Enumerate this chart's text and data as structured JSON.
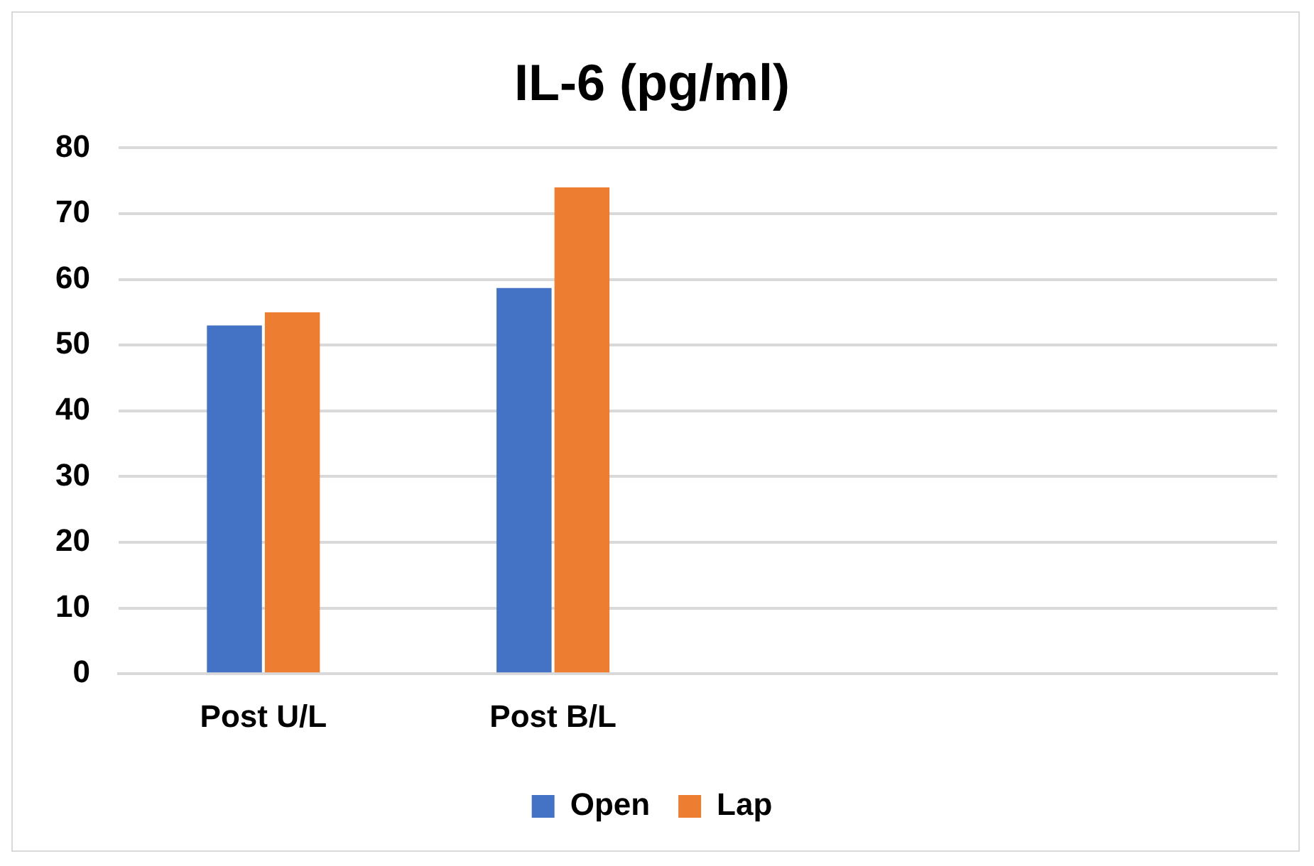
{
  "chart_data": {
    "type": "bar",
    "title": "IL-6 (pg/ml)",
    "categories": [
      "Post U/L",
      "Post B/L",
      null,
      null
    ],
    "series": [
      {
        "name": "Open",
        "color": "#4472c4",
        "values": [
          53,
          58.7,
          null,
          null
        ]
      },
      {
        "name": "Lap",
        "color": "#ed7d31",
        "values": [
          55,
          74,
          null,
          null
        ]
      }
    ],
    "ylim": [
      0,
      80
    ],
    "yticks": [
      0,
      10,
      20,
      30,
      40,
      50,
      60,
      70,
      80
    ],
    "grid": "y",
    "legend": "bottom"
  }
}
